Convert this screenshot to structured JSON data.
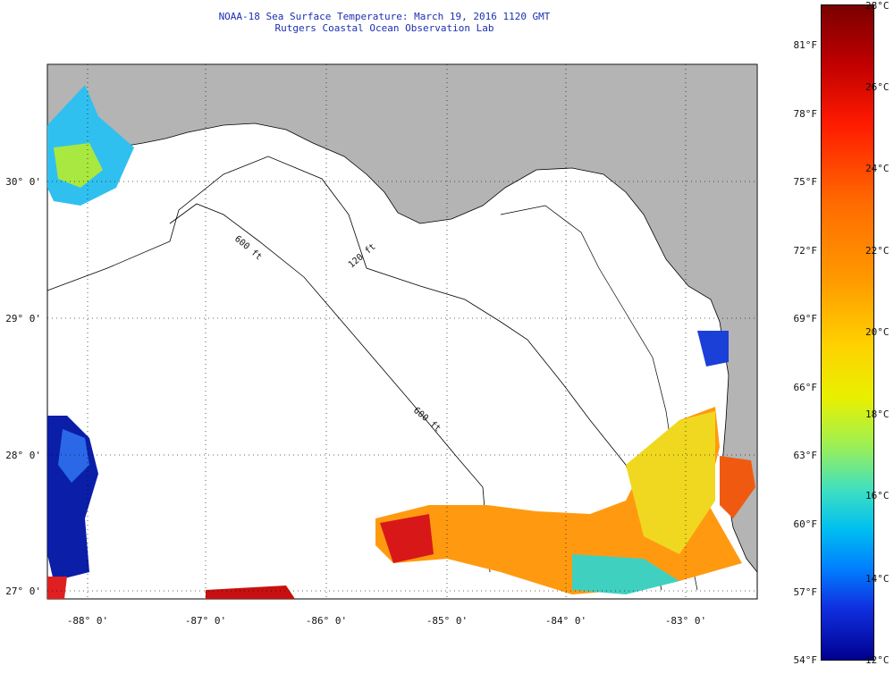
{
  "header": {
    "line1": "NOAA-18 Sea Surface Temperature:  March 19, 2016 1120 GMT",
    "line2": "Rutgers Coastal Ocean Observation Lab"
  },
  "map": {
    "land_color": "#b4b4b4",
    "ocean_color": "#ffffff",
    "lat_labels": [
      "30° 0'",
      "29° 0'",
      "28° 0'",
      "27° 0'"
    ],
    "lon_labels": [
      "-88° 0'",
      "-87° 0'",
      "-86° 0'",
      "-85° 0'",
      "-84° 0'",
      "-83° 0'"
    ],
    "isobath_labels": [
      "600 ft",
      "120 ft",
      "600 ft"
    ]
  },
  "colorbar": {
    "fahrenheit_ticks": [
      "81°F",
      "78°F",
      "75°F",
      "72°F",
      "69°F",
      "66°F",
      "63°F",
      "60°F",
      "57°F",
      "54°F"
    ],
    "celsius_ticks": [
      "28°C",
      "26°C",
      "24°C",
      "22°C",
      "20°C",
      "18°C",
      "16°C",
      "14°C",
      "12°C"
    ]
  }
}
